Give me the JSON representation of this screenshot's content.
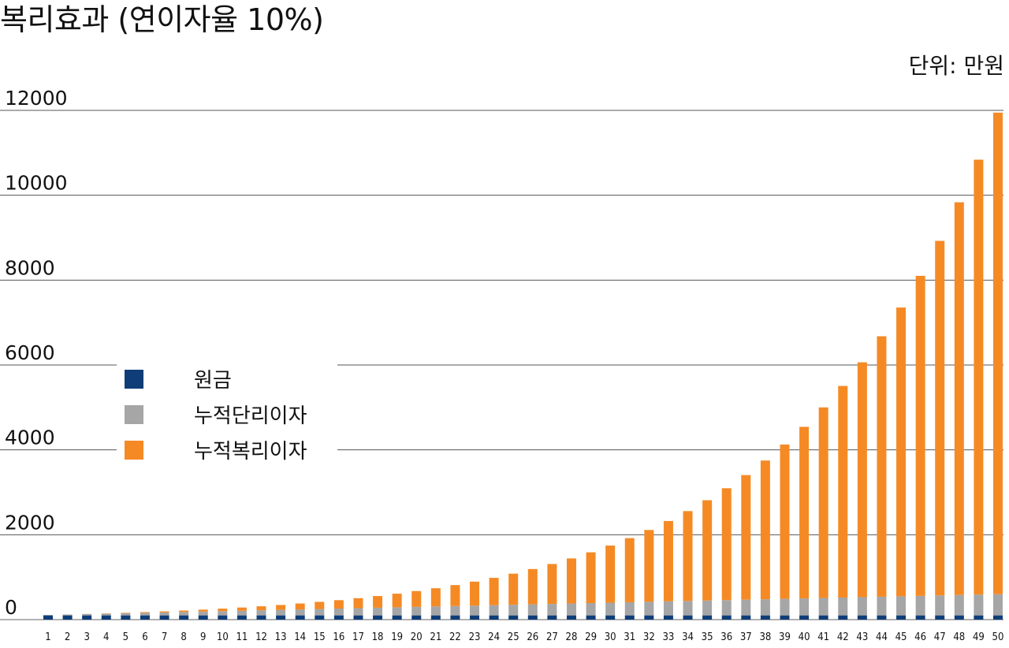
{
  "chart_data": {
    "type": "bar",
    "stacked": true,
    "title": "복리효과 (연이자율 10%)",
    "unit": "단위: 만원",
    "ylim": [
      0,
      12000
    ],
    "yticks": [
      0,
      2000,
      4000,
      6000,
      8000,
      10000,
      12000
    ],
    "grid": true,
    "legend_position": "left-middle",
    "categories": [
      "1",
      "2",
      "3",
      "4",
      "5",
      "6",
      "7",
      "8",
      "9",
      "10",
      "11",
      "12",
      "13",
      "14",
      "15",
      "16",
      "17",
      "18",
      "19",
      "20",
      "21",
      "22",
      "23",
      "24",
      "25",
      "26",
      "27",
      "28",
      "29",
      "30",
      "31",
      "32",
      "33",
      "34",
      "35",
      "36",
      "37",
      "38",
      "39",
      "40",
      "41",
      "42",
      "43",
      "44",
      "45",
      "46",
      "47",
      "48",
      "49",
      "50"
    ],
    "series": [
      {
        "name": "원금",
        "color": "#0f3d78",
        "values": [
          100,
          100,
          100,
          100,
          100,
          100,
          100,
          100,
          100,
          100,
          100,
          100,
          100,
          100,
          100,
          100,
          100,
          100,
          100,
          100,
          100,
          100,
          100,
          100,
          100,
          100,
          100,
          100,
          100,
          100,
          100,
          100,
          100,
          100,
          100,
          100,
          100,
          100,
          100,
          100,
          100,
          100,
          100,
          100,
          100,
          100,
          100,
          100,
          100,
          100
        ]
      },
      {
        "name": "누적단리이자",
        "color": "#a6a6a6",
        "values": [
          10,
          20,
          30,
          40,
          50,
          60,
          70,
          80,
          90,
          100,
          110,
          120,
          130,
          140,
          150,
          160,
          170,
          180,
          190,
          200,
          210,
          220,
          230,
          240,
          250,
          260,
          270,
          280,
          290,
          300,
          310,
          320,
          330,
          340,
          350,
          360,
          370,
          380,
          390,
          400,
          410,
          420,
          430,
          440,
          450,
          460,
          470,
          480,
          490,
          500
        ]
      },
      {
        "name": "누적복리이자",
        "color": "#f58a25",
        "values": [
          0,
          1,
          3,
          6,
          11,
          17,
          25,
          34,
          46,
          59,
          75,
          94,
          115,
          140,
          168,
          199,
          235,
          276,
          321,
          373,
          430,
          494,
          565,
          645,
          733,
          832,
          941,
          1062,
          1196,
          1345,
          1510,
          1692,
          1894,
          2117,
          2363,
          2636,
          2936,
          3269,
          3636,
          4043,
          4491,
          4986,
          5533,
          6137,
          6804,
          7541,
          8355,
          9254,
          10248,
          11347
        ]
      }
    ]
  }
}
